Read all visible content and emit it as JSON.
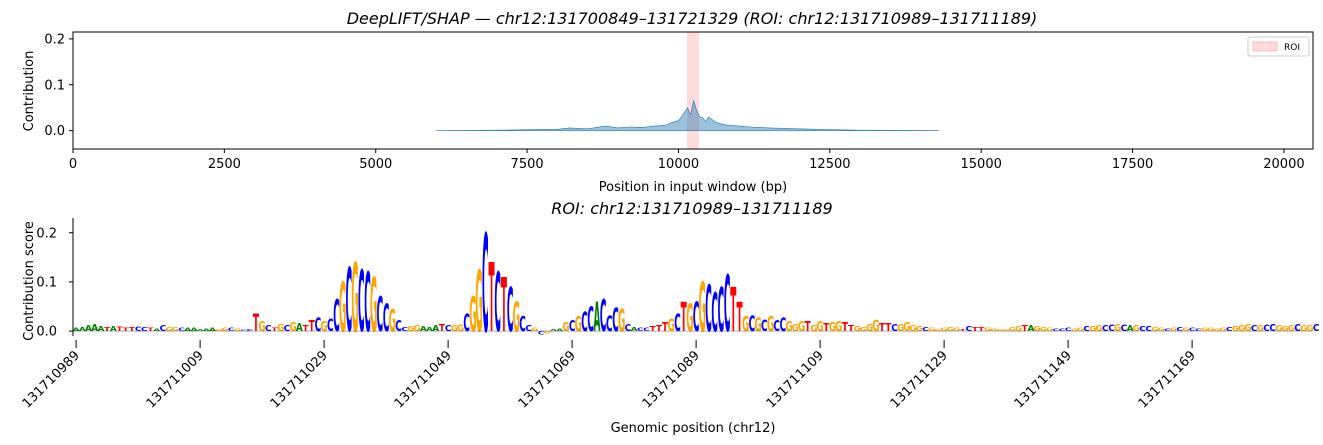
{
  "figure": {
    "top_panel": {
      "title": "DeepLIFT/SHAP — chr12:131700849–131721329 (ROI: chr12:131710989–131711189)",
      "xlabel": "Position in input window (bp)",
      "ylabel": "Contribution",
      "legend_label": "ROI"
    },
    "bottom_panel": {
      "title": "ROI: chr12:131710989–131711189",
      "xlabel": "Genomic position (chr12)",
      "ylabel": "Contribution score"
    }
  },
  "chart_data": [
    {
      "type": "area",
      "title": "DeepLIFT/SHAP — chr12:131700849–131721329 (ROI: chr12:131710989–131711189)",
      "xlabel": "Position in input window (bp)",
      "ylabel": "Contribution",
      "xlim": [
        0,
        20480
      ],
      "ylim": [
        -0.04,
        0.215
      ],
      "xticks": [
        0,
        2500,
        5000,
        7500,
        10000,
        12500,
        15000,
        17500,
        20000
      ],
      "yticks": [
        0.0,
        0.1,
        0.2
      ],
      "ytick_labels": [
        "0.0",
        "0.1",
        "0.2"
      ],
      "series_color": "#1f77b4",
      "roi": {
        "start": 10140,
        "end": 10340,
        "label": "ROI",
        "color": "#ff9999"
      },
      "legend": "top-right",
      "trace": {
        "x": [
          6000,
          7000,
          7500,
          8000,
          8200,
          8500,
          8800,
          9000,
          9200,
          9400,
          9600,
          9800,
          9900,
          10000,
          10050,
          10100,
          10150,
          10200,
          10250,
          10300,
          10350,
          10400,
          10450,
          10500,
          10600,
          10700,
          10800,
          11000,
          11200,
          11500,
          12000,
          12500,
          13000,
          14000,
          14300
        ],
        "y": [
          0.0,
          0.001,
          0.002,
          0.003,
          0.006,
          0.004,
          0.01,
          0.006,
          0.008,
          0.007,
          0.01,
          0.012,
          0.018,
          0.022,
          0.03,
          0.04,
          0.05,
          0.035,
          0.065,
          0.045,
          0.03,
          0.028,
          0.02,
          0.03,
          0.02,
          0.015,
          0.012,
          0.01,
          0.008,
          0.006,
          0.004,
          0.002,
          0.001,
          0.0005,
          0.0
        ]
      }
    },
    {
      "type": "bar",
      "title": "ROI: chr12:131710989–131711189",
      "xlabel": "Genomic position (chr12)",
      "ylabel": "Contribution score",
      "xlim": [
        131710988.5,
        131711188.5
      ],
      "ylim": [
        -0.01,
        0.23
      ],
      "xticks": [
        131710989,
        131711009,
        131711029,
        131711049,
        131711069,
        131711089,
        131711109,
        131711129,
        131711149,
        131711169
      ],
      "yticks": [
        0.0,
        0.1,
        0.2
      ],
      "ytick_labels": [
        "0.0",
        "0.1",
        "0.2"
      ],
      "start": 131710989,
      "base_colors": {
        "A": "#008000",
        "C": "#0000ff",
        "G": "#ffa500",
        "T": "#ff0000"
      },
      "sequence": "AAAAATATTTCCTACGGCAAAAAGGCGCCTGCTGCGATTCGCCGCGCCGCCGCCGGAAATCGGCGGCTCTCGCCGCGAAGCGCCACCCGCACCTTTGCTGCGCCCCTTGCGCGCCGGGTGGTGGTTGGGGTTCGGGGCGGGGGTCTTGGGGGGTAGGGCCCGGCGGCCGCAGCCGGCGCGCCGGGGCGGGCGCCGGGCGGC",
      "values": [
        0.006,
        0.008,
        0.012,
        0.014,
        0.011,
        0.008,
        0.01,
        0.009,
        0.007,
        0.008,
        0.009,
        0.008,
        0.006,
        0.005,
        0.012,
        0.008,
        0.008,
        0.006,
        0.006,
        0.006,
        0.004,
        0.005,
        0.006,
        0.004,
        0.006,
        0.006,
        0.005,
        0.003,
        0.004,
        0.035,
        0.02,
        0.012,
        0.006,
        0.014,
        0.012,
        0.018,
        0.016,
        0.012,
        0.022,
        0.028,
        0.02,
        0.025,
        0.065,
        0.1,
        0.13,
        0.14,
        0.125,
        0.12,
        0.11,
        0.07,
        0.055,
        0.045,
        0.022,
        0.008,
        0.01,
        0.012,
        0.01,
        0.008,
        0.012,
        0.015,
        0.012,
        0.012,
        0.013,
        0.035,
        0.07,
        0.125,
        0.2,
        0.14,
        0.12,
        0.11,
        0.09,
        0.06,
        0.03,
        0.012,
        0.006,
        -0.006,
        -0.005,
        0.004,
        0.005,
        0.018,
        0.022,
        0.03,
        0.04,
        0.05,
        0.06,
        0.065,
        0.032,
        0.048,
        0.045,
        0.015,
        0.008,
        0.006,
        0.006,
        0.01,
        0.012,
        0.018,
        0.025,
        0.035,
        0.06,
        0.055,
        0.06,
        0.1,
        0.095,
        0.08,
        0.09,
        0.115,
        0.09,
        0.06,
        0.03,
        0.032,
        0.028,
        0.024,
        0.03,
        0.022,
        0.028,
        0.02,
        0.015,
        0.02,
        0.02,
        0.012,
        0.02,
        0.016,
        0.018,
        0.02,
        0.018,
        0.012,
        0.01,
        0.008,
        0.014,
        0.024,
        0.016,
        0.016,
        0.014,
        0.015,
        0.018,
        0.012,
        0.01,
        0.008,
        0.006,
        0.004,
        0.006,
        0.008,
        0.006,
        0.004,
        0.01,
        0.008,
        0.008,
        0.006,
        0.005,
        0.004,
        0.004,
        0.008,
        0.01,
        0.012,
        0.012,
        0.01,
        0.008,
        0.006,
        0.005,
        0.005,
        0.006,
        0.005,
        0.006,
        0.01,
        0.01,
        0.012,
        0.012,
        0.013,
        0.014,
        0.013,
        0.012,
        0.012,
        0.01,
        0.01,
        0.008,
        0.006,
        0.005,
        0.006,
        0.008,
        0.007,
        0.006,
        0.005,
        0.006,
        0.006,
        0.005,
        0.006,
        0.008,
        0.01,
        0.012,
        0.014,
        0.012,
        0.012,
        0.013,
        0.014,
        0.012,
        0.01,
        0.012,
        0.014,
        0.012,
        0.012,
        0.014,
        0.012
      ]
    }
  ]
}
